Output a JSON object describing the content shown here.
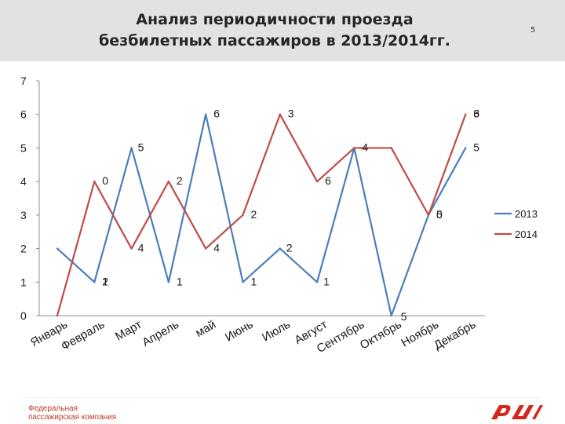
{
  "slide": {
    "title_line1": "Анализ периодичности проезда",
    "title_line2": "безбилетных пассажиров в 2013/2014гг.",
    "page_number": "5"
  },
  "footer": {
    "company_line1": "Федеральная",
    "company_line2": "пассажирская компания",
    "logo_name": "rzd-logo",
    "brand_color": "#d6261c"
  },
  "chart_data": {
    "type": "line",
    "categories": [
      "Январь",
      "Февраль",
      "Март",
      "Апрель",
      "май",
      "Июнь",
      "Июль",
      "Август",
      "Сентябрь",
      "Октябрь",
      "Ноябрь",
      "Декабрь"
    ],
    "series": [
      {
        "name": "2013",
        "color": "#4a7ebb",
        "values": [
          2,
          1,
          5,
          1,
          6,
          1,
          2,
          1,
          5,
          0,
          3,
          5
        ]
      },
      {
        "name": "2014",
        "color": "#be4b48",
        "values": [
          0,
          4,
          2,
          4,
          2,
          3,
          6,
          4,
          5,
          5,
          3,
          6
        ]
      }
    ],
    "y_ticks": [
      "0",
      "1",
      "2",
      "3",
      "4",
      "5",
      "6",
      "7"
    ],
    "data_labels": [
      {
        "text": "2",
        "series": "2013",
        "index": 1
      },
      {
        "text": "1",
        "series": "2013",
        "index": 1
      },
      {
        "text": "5",
        "series": "2013",
        "index": 2
      },
      {
        "text": "1",
        "series": "2013",
        "index": 3
      },
      {
        "text": "6",
        "series": "2013",
        "index": 4
      },
      {
        "text": "1",
        "series": "2013",
        "index": 5
      },
      {
        "text": "2",
        "series": "2013",
        "index": 6
      },
      {
        "text": "1",
        "series": "2013",
        "index": 7
      },
      {
        "text": "5",
        "series": "2013",
        "index": 9
      },
      {
        "text": "0",
        "series": "2013",
        "index": 10
      },
      {
        "text": "5",
        "series": "2013",
        "index": 11
      },
      {
        "text": "0",
        "series": "2014",
        "index": 1
      },
      {
        "text": "4",
        "series": "2014",
        "index": 2
      },
      {
        "text": "2",
        "series": "2014",
        "index": 3
      },
      {
        "text": "4",
        "series": "2014",
        "index": 4
      },
      {
        "text": "2",
        "series": "2014",
        "index": 5
      },
      {
        "text": "3",
        "series": "2014",
        "index": 6
      },
      {
        "text": "6",
        "series": "2014",
        "index": 7
      },
      {
        "text": "4",
        "series": "2014",
        "index": 8
      },
      {
        "text": "5",
        "series": "2014",
        "index": 10
      },
      {
        "text": "3",
        "series": "2014",
        "index": 11
      },
      {
        "text": "6",
        "series": "2014",
        "index": 12
      }
    ],
    "ylim": [
      0,
      7
    ],
    "grid": false,
    "legend_position": "right",
    "title": "",
    "xlabel": "",
    "ylabel": ""
  }
}
